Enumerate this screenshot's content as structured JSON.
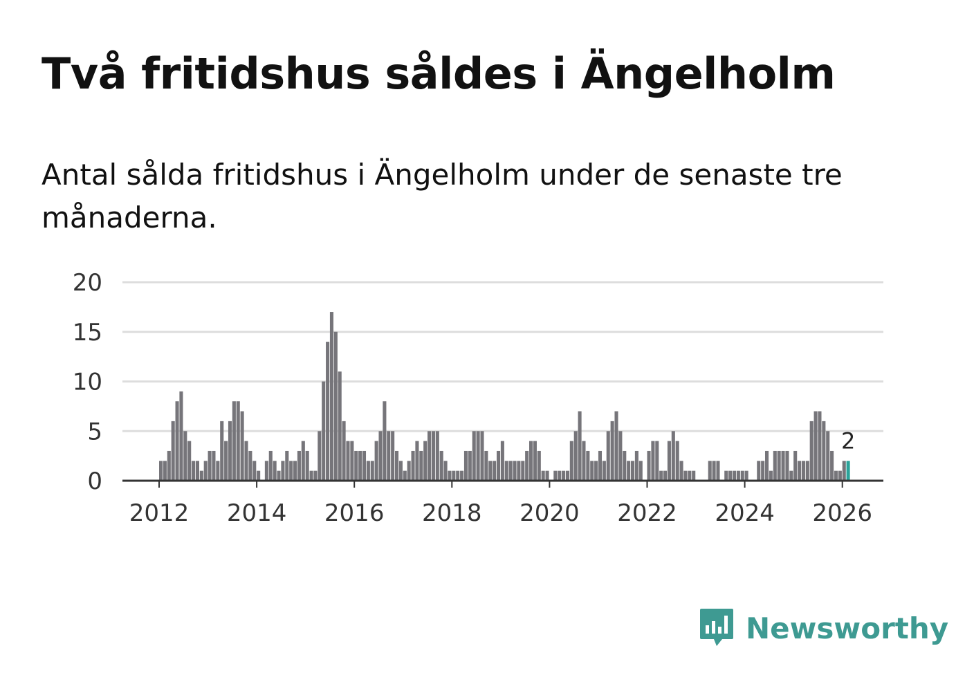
{
  "title": "Två fritidshus såldes i Ängelholm",
  "subtitle": "Antal sålda fritidshus i Ängelholm under de senaste tre månaderna.",
  "brand": "Newsworthy",
  "colors": {
    "bar": "#76757a",
    "highlight": "#2aa39a",
    "grid": "#dddddd",
    "axis": "#333333"
  },
  "chart_data": {
    "type": "bar",
    "title": "Två fritidshus såldes i Ängelholm",
    "xlabel": "",
    "ylabel": "",
    "ylim": [
      0,
      20
    ],
    "yticks": [
      0,
      5,
      10,
      15,
      20
    ],
    "xticks": [
      2012,
      2014,
      2016,
      2018,
      2020,
      2022,
      2024,
      2026
    ],
    "start": [
      2011,
      1
    ],
    "values": [
      0,
      0,
      0,
      0,
      0,
      0,
      0,
      0,
      0,
      0,
      0,
      0,
      2,
      2,
      3,
      6,
      8,
      9,
      5,
      4,
      2,
      2,
      1,
      2,
      3,
      3,
      2,
      6,
      4,
      6,
      8,
      8,
      7,
      4,
      3,
      2,
      1,
      0,
      2,
      3,
      2,
      1,
      2,
      3,
      2,
      2,
      3,
      4,
      3,
      1,
      1,
      5,
      10,
      14,
      17,
      15,
      11,
      6,
      4,
      4,
      3,
      3,
      3,
      2,
      2,
      4,
      5,
      8,
      5,
      5,
      3,
      2,
      1,
      2,
      3,
      4,
      3,
      4,
      5,
      5,
      5,
      3,
      2,
      1,
      1,
      1,
      1,
      3,
      3,
      5,
      5,
      5,
      3,
      2,
      2,
      3,
      4,
      2,
      2,
      2,
      2,
      2,
      3,
      4,
      4,
      3,
      1,
      1,
      0,
      1,
      1,
      1,
      1,
      4,
      5,
      7,
      4,
      3,
      2,
      2,
      3,
      2,
      5,
      6,
      7,
      5,
      3,
      2,
      2,
      3,
      2,
      0,
      3,
      4,
      4,
      1,
      1,
      4,
      5,
      4,
      2,
      1,
      1,
      1,
      0,
      0,
      0,
      2,
      2,
      2,
      0,
      1,
      1,
      1,
      1,
      1,
      1,
      0,
      0,
      2,
      2,
      3,
      1,
      3,
      3,
      3,
      3,
      1,
      3,
      2,
      2,
      2,
      6,
      7,
      7,
      6,
      5,
      3,
      1,
      1,
      2,
      2
    ],
    "highlight_last": true,
    "last_label": "2"
  }
}
